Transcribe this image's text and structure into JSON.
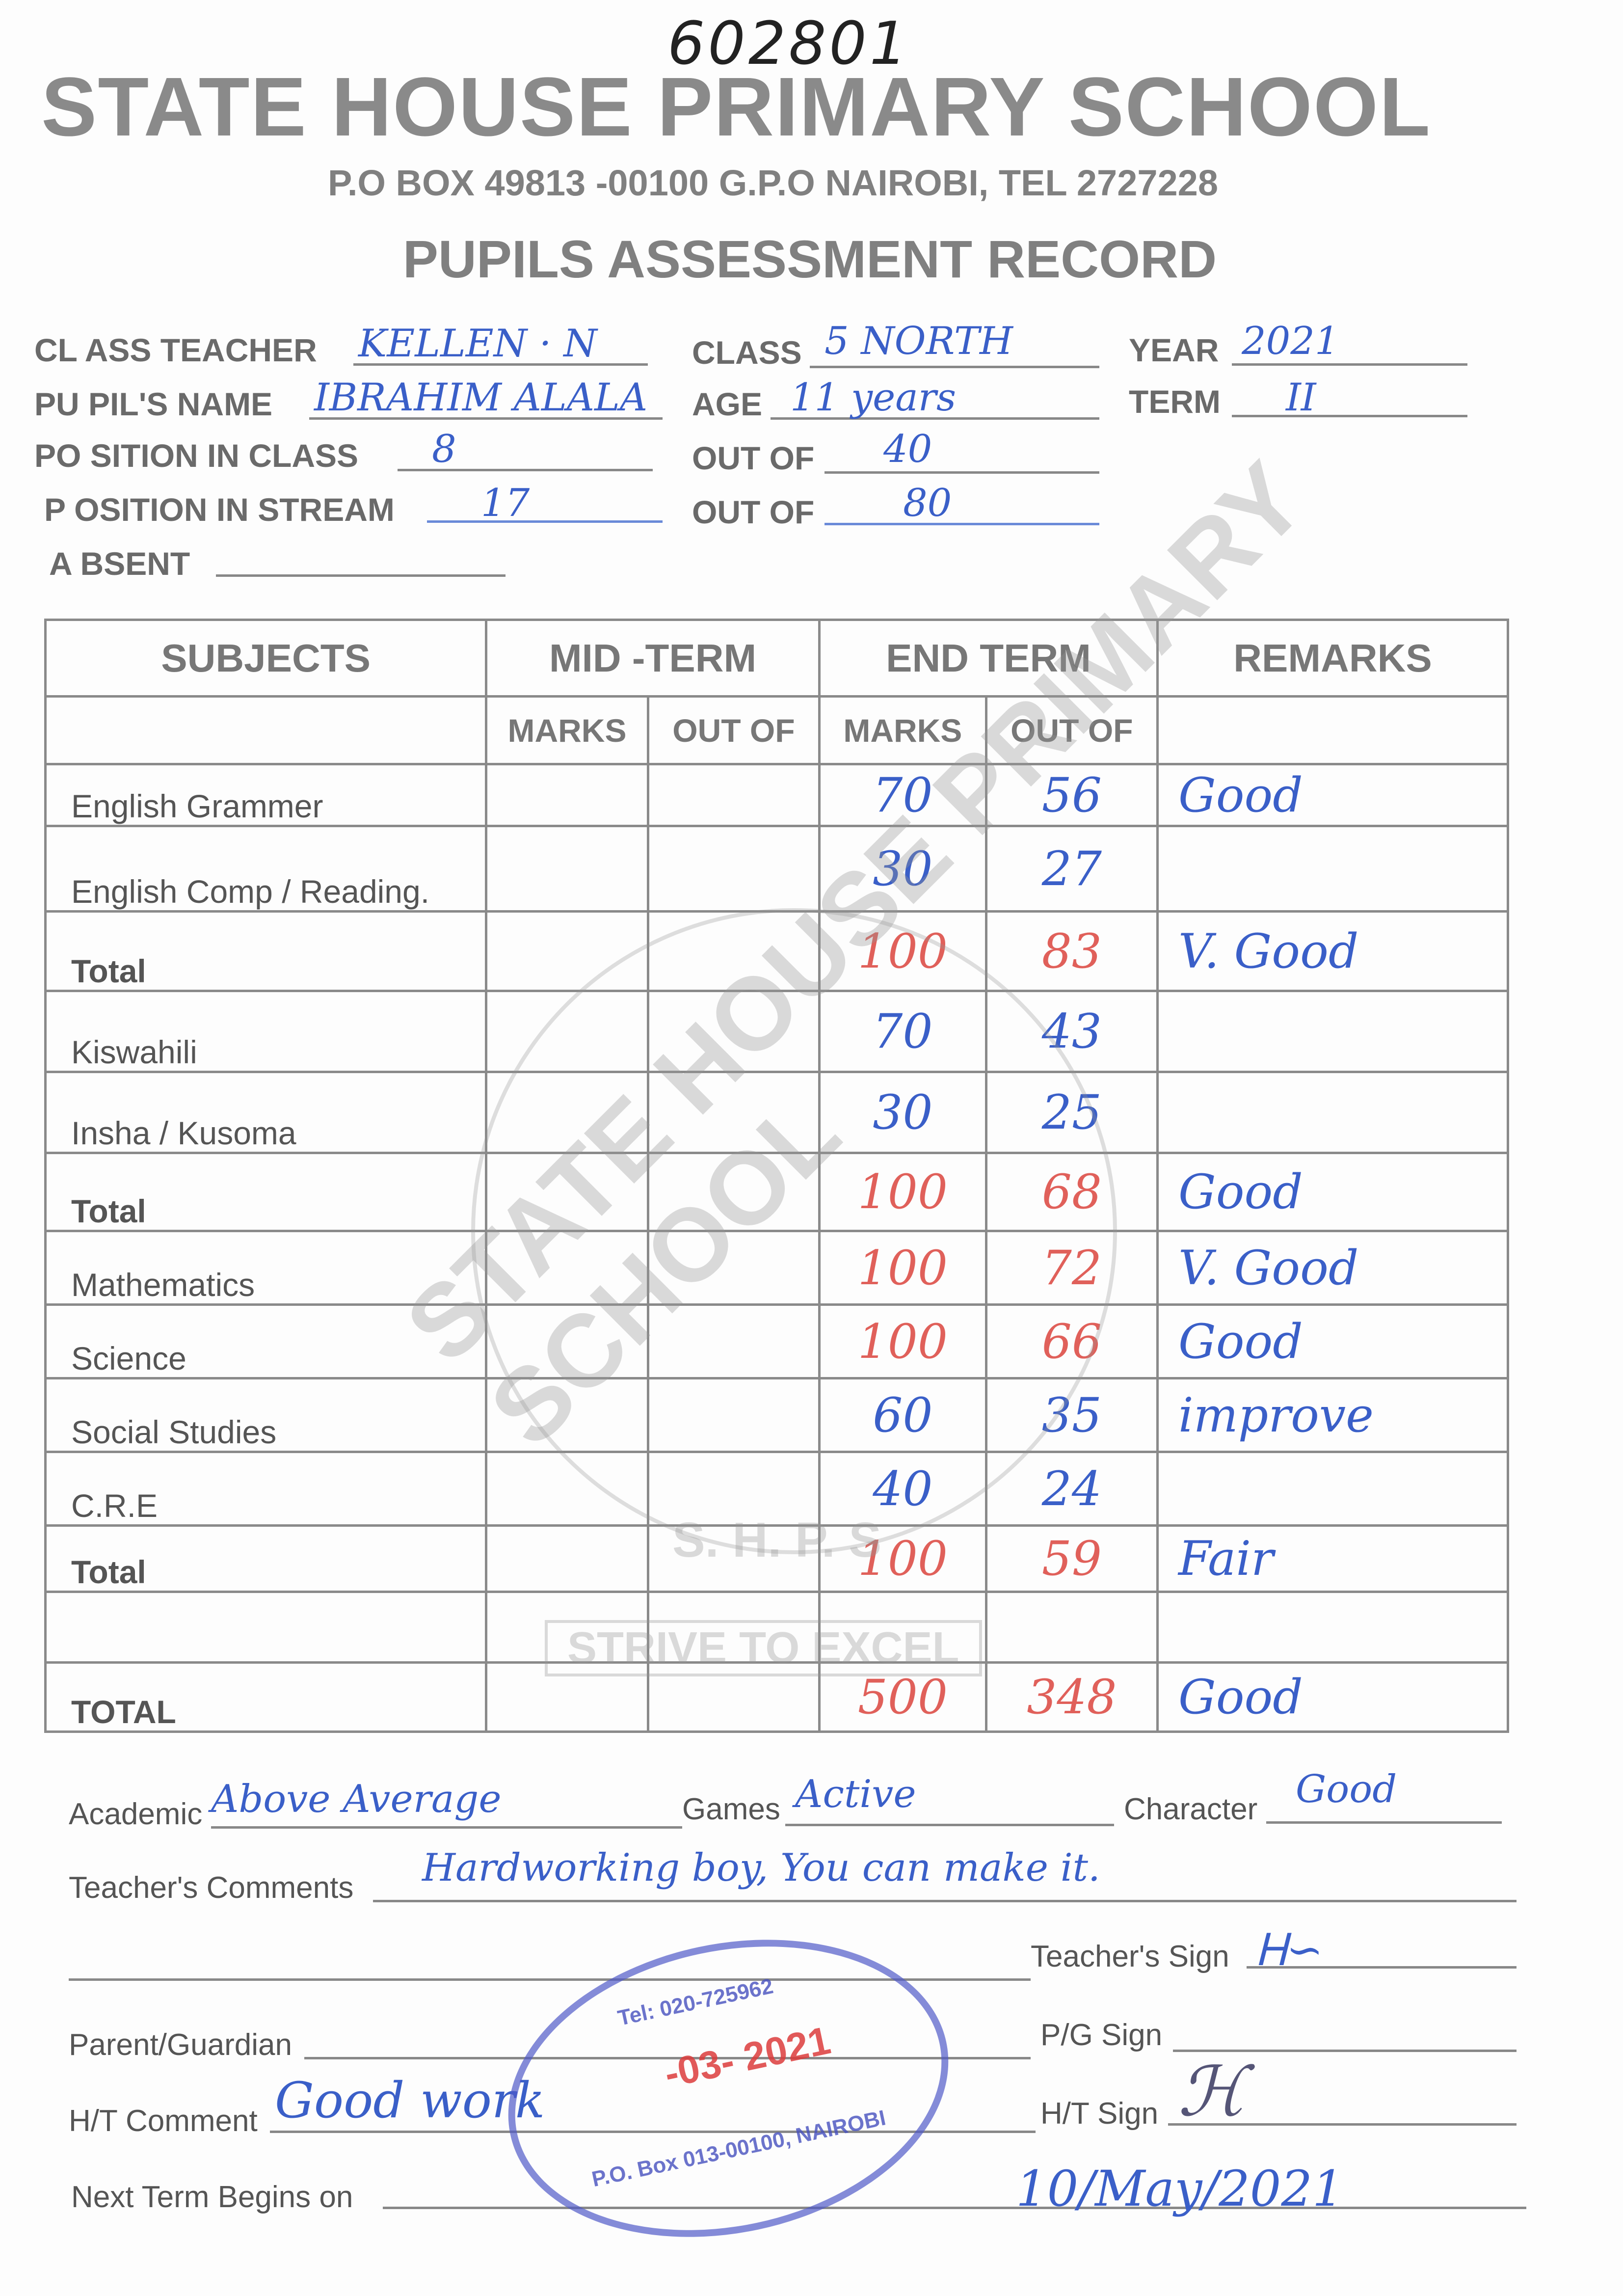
{
  "reference_number": "602801",
  "header": {
    "school_name": "STATE HOUSE PRIMARY SCHOOL",
    "address": "P.O BOX 49813 -00100 G.P.O NAIROBI, TEL 2727228",
    "record_title": "PUPILS ASSESSMENT RECORD"
  },
  "details": {
    "class_teacher_label": "CL  ASS TEACHER",
    "class_teacher": "KELLEN · N",
    "class_label": "CLASS",
    "class": "5 NORTH",
    "year_label": "YEAR",
    "year": "2021",
    "pupil_name_label": "PU  PIL'S NAME",
    "pupil_name": "IBRAHIM  ALALA",
    "age_label": "AGE",
    "age": "11 years",
    "term_label": "TERM",
    "term": "II",
    "position_class_label": "PO SITION IN CLASS",
    "position_class": "8",
    "out_of_class_label": "OUT OF",
    "out_of_class": "40",
    "position_stream_label": "P OSITION IN STREAM",
    "position_stream": "17",
    "out_of_stream_label": "OUT OF",
    "out_of_stream": "80",
    "absent_label": "A BSENT",
    "absent": ""
  },
  "table": {
    "headers": {
      "subjects": "SUBJECTS",
      "mid_term": "MID -TERM",
      "end_term": "END TERM",
      "remarks": "REMARKS"
    },
    "subheaders": {
      "mid_marks": "MARKS",
      "mid_out_of": "OUT OF",
      "end_marks": "MARKS",
      "end_out_of": "OUT OF"
    },
    "rows": [
      {
        "subject": "English Grammer",
        "mid_marks": "",
        "mid_out_of": "",
        "end_marks": "70",
        "end_out_of": "56",
        "remarks": "Good",
        "bold": false,
        "red": false
      },
      {
        "subject": "English Comp / Reading.",
        "mid_marks": "",
        "mid_out_of": "",
        "end_marks": "30",
        "end_out_of": "27",
        "remarks": "",
        "bold": false,
        "red": false
      },
      {
        "subject": "Total",
        "mid_marks": "",
        "mid_out_of": "",
        "end_marks": "100",
        "end_out_of": "83",
        "remarks": "V. Good",
        "bold": true,
        "red": true
      },
      {
        "subject": "Kiswahili",
        "mid_marks": "",
        "mid_out_of": "",
        "end_marks": "70",
        "end_out_of": "43",
        "remarks": "",
        "bold": false,
        "red": false
      },
      {
        "subject": "Insha / Kusoma",
        "mid_marks": "",
        "mid_out_of": "",
        "end_marks": "30",
        "end_out_of": "25",
        "remarks": "",
        "bold": false,
        "red": false
      },
      {
        "subject": "Total",
        "mid_marks": "",
        "mid_out_of": "",
        "end_marks": "100",
        "end_out_of": "68",
        "remarks": "Good",
        "bold": true,
        "red": true
      },
      {
        "subject": "Mathematics",
        "mid_marks": "",
        "mid_out_of": "",
        "end_marks": "100",
        "end_out_of": "72",
        "remarks": "V. Good",
        "bold": false,
        "red": true
      },
      {
        "subject": "Science",
        "mid_marks": "",
        "mid_out_of": "",
        "end_marks": "100",
        "end_out_of": "66",
        "remarks": "Good",
        "bold": false,
        "red": true
      },
      {
        "subject": "Social Studies",
        "mid_marks": "",
        "mid_out_of": "",
        "end_marks": "60",
        "end_out_of": "35",
        "remarks": "improve",
        "bold": false,
        "red": false
      },
      {
        "subject": "C.R.E",
        "mid_marks": "",
        "mid_out_of": "",
        "end_marks": "40",
        "end_out_of": "24",
        "remarks": "",
        "bold": false,
        "red": false
      },
      {
        "subject": "Total",
        "mid_marks": "",
        "mid_out_of": "",
        "end_marks": "100",
        "end_out_of": "59",
        "remarks": "Fair",
        "bold": true,
        "red": true
      },
      {
        "subject": "",
        "mid_marks": "",
        "mid_out_of": "",
        "end_marks": "",
        "end_out_of": "",
        "remarks": "",
        "bold": false,
        "red": false
      },
      {
        "subject": "TOTAL",
        "mid_marks": "",
        "mid_out_of": "",
        "end_marks": "500",
        "end_out_of": "348",
        "remarks": "Good",
        "bold": true,
        "red": true
      }
    ]
  },
  "watermark": {
    "text": "STATE HOUSE PRIMARY SCHOOL",
    "initials": "S. H. P. S",
    "motto": "STRIVE TO EXCEL"
  },
  "footer": {
    "academic_label": "Academic",
    "academic": "Above Average",
    "games_label": "Games",
    "games": "Active",
    "character_label": "Character",
    "character": "Good",
    "teacher_comments_label": "Teacher's Comments",
    "teacher_comments": "Hardworking boy, You can make it.",
    "teacher_sign_label": "Teacher's Sign",
    "parent_label": "Parent/Guardian",
    "pg_sign_label": "P/G Sign",
    "ht_comment_label": "H/T Comment",
    "ht_comment": "Good work",
    "ht_sign_label": "H/T Sign",
    "next_term_label": "Next Term Begins on",
    "next_term": "10/May/2021"
  },
  "stamp": {
    "tel": "Tel: 020-725962",
    "date": "-03- 2021",
    "box": "P.O. Box 013-00100, NAIROBI"
  },
  "colors": {
    "ink_blue": "#3a5fc8",
    "ink_red": "#e0605a",
    "stamp": "#5a5ac8"
  }
}
